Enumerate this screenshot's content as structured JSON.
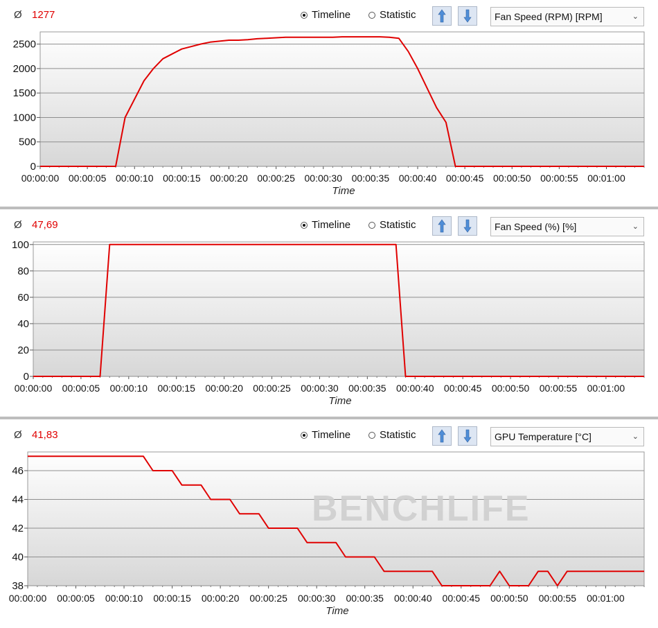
{
  "panels": [
    {
      "avg_symbol": "Ø",
      "avg_value": "1277",
      "mode_timeline": "Timeline",
      "mode_statistic": "Statistic",
      "selected_metric": "Fan Speed (RPM) [RPM]"
    },
    {
      "avg_symbol": "Ø",
      "avg_value": "47,69",
      "mode_timeline": "Timeline",
      "mode_statistic": "Statistic",
      "selected_metric": "Fan Speed (%) [%]"
    },
    {
      "avg_symbol": "Ø",
      "avg_value": "41,83",
      "mode_timeline": "Timeline",
      "mode_statistic": "Statistic",
      "selected_metric": "GPU Temperature [°C]"
    }
  ],
  "watermark": "BENCHLIFE",
  "chart_data": [
    {
      "type": "line",
      "series_color": "#e00000",
      "xlabel": "Time",
      "ylabel": "",
      "x_tick_labels": [
        "00:00:00",
        "00:00:05",
        "00:00:10",
        "00:00:15",
        "00:00:20",
        "00:00:25",
        "00:00:30",
        "00:00:35",
        "00:00:40",
        "00:00:45",
        "00:00:50",
        "00:00:55",
        "00:01:00"
      ],
      "y_ticks": [
        0,
        500,
        1000,
        1500,
        2000,
        2500
      ],
      "xlim": [
        0,
        64
      ],
      "ylim": [
        0,
        2750
      ],
      "x": [
        0,
        8,
        9,
        11,
        12,
        13,
        14,
        15,
        16,
        17,
        18,
        19,
        20,
        21,
        22,
        23,
        24,
        25,
        26,
        27,
        28,
        29,
        30,
        31,
        32,
        33,
        34,
        35,
        36,
        37,
        38,
        39,
        40,
        41,
        42,
        43,
        44,
        45,
        64
      ],
      "y": [
        0,
        0,
        1000,
        1750,
        2000,
        2200,
        2300,
        2400,
        2450,
        2500,
        2540,
        2560,
        2580,
        2580,
        2590,
        2610,
        2620,
        2630,
        2640,
        2640,
        2640,
        2640,
        2640,
        2640,
        2650,
        2650,
        2650,
        2650,
        2650,
        2640,
        2620,
        2350,
        2000,
        1600,
        1200,
        900,
        0,
        0,
        0
      ]
    },
    {
      "type": "line",
      "series_color": "#e00000",
      "xlabel": "Time",
      "ylabel": "",
      "x_tick_labels": [
        "00:00:00",
        "00:00:05",
        "00:00:10",
        "00:00:15",
        "00:00:20",
        "00:00:25",
        "00:00:30",
        "00:00:35",
        "00:00:40",
        "00:00:45",
        "00:00:50",
        "00:00:55",
        "00:01:00"
      ],
      "y_ticks": [
        0,
        20,
        40,
        60,
        80,
        100
      ],
      "xlim": [
        0,
        64
      ],
      "ylim": [
        0,
        102
      ],
      "x": [
        0,
        7,
        8,
        38,
        39,
        64
      ],
      "y": [
        0,
        0,
        100,
        100,
        0,
        0
      ]
    },
    {
      "type": "line",
      "series_color": "#e00000",
      "xlabel": "Time",
      "ylabel": "",
      "x_tick_labels": [
        "00:00:00",
        "00:00:05",
        "00:00:10",
        "00:00:15",
        "00:00:20",
        "00:00:25",
        "00:00:30",
        "00:00:35",
        "00:00:40",
        "00:00:45",
        "00:00:50",
        "00:00:55",
        "00:01:00"
      ],
      "y_ticks": [
        38,
        40,
        42,
        44,
        46
      ],
      "xlim": [
        0,
        64
      ],
      "ylim": [
        38,
        47.3
      ],
      "x": [
        0,
        12,
        13,
        15,
        16,
        18,
        19,
        21,
        22,
        24,
        25,
        28,
        29,
        32,
        33,
        36,
        37,
        42,
        43,
        48,
        49,
        50,
        52,
        53,
        54,
        55,
        56,
        64
      ],
      "y": [
        47,
        47,
        46,
        46,
        45,
        45,
        44,
        44,
        43,
        43,
        42,
        42,
        41,
        41,
        40,
        40,
        39,
        39,
        38,
        38,
        39,
        38,
        38,
        39,
        39,
        38,
        39,
        39
      ]
    }
  ]
}
